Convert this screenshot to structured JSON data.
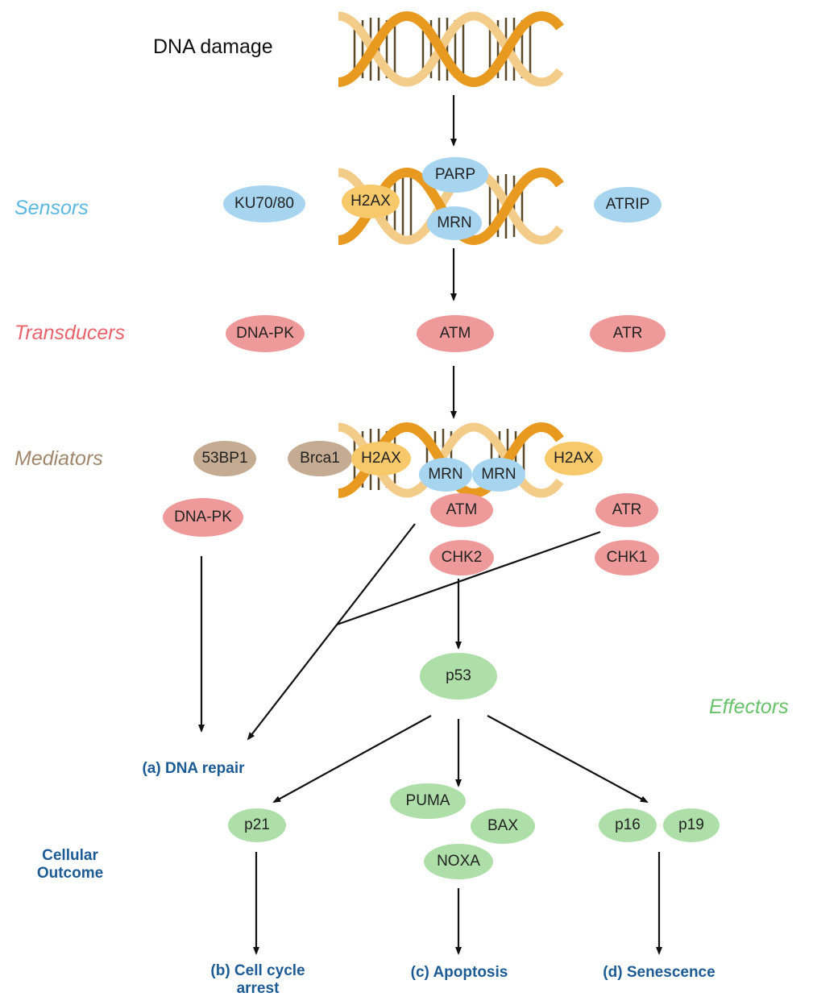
{
  "title": "DNA damage",
  "categories": {
    "sensors": "Sensors",
    "transducers": "Transducers",
    "mediators": "Mediators",
    "effectors": "Effectors",
    "cellular_outcome": "Cellular\nOutcome"
  },
  "colors": {
    "sensors": "#5bb8e0",
    "transducers": "#e8636b",
    "mediators": "#a0876b",
    "effectors": "#67c26a",
    "outcome": "#1c5b94",
    "dna_strand": "#e79a1f"
  },
  "nodes": {
    "ku7080": "KU70/80",
    "parp": "PARP",
    "h2ax_sensor": "H2AX",
    "mrn_sensor": "MRN",
    "atrip": "ATRIP",
    "dnapk_transducer": "DNA-PK",
    "atm_transducer": "ATM",
    "atr_transducer": "ATR",
    "bp53": "53BP1",
    "brca1": "Brca1",
    "h2ax_m1": "H2AX",
    "mrn_m1": "MRN",
    "mrn_m2": "MRN",
    "h2ax_m2": "H2AX",
    "dnapk_mediator": "DNA-PK",
    "atm_mediator": "ATM",
    "atr_mediator": "ATR",
    "chk2": "CHK2",
    "chk1": "CHK1",
    "p53": "p53",
    "p21": "p21",
    "puma": "PUMA",
    "bax": "BAX",
    "noxa": "NOXA",
    "p16": "p16",
    "p19": "p19"
  },
  "outcomes": {
    "dna_repair": "(a) DNA repair",
    "cell_cycle_arrest": "(b) Cell cycle\narrest",
    "apoptosis": "(c) Apoptosis",
    "senescence": "(d) Senescence"
  }
}
